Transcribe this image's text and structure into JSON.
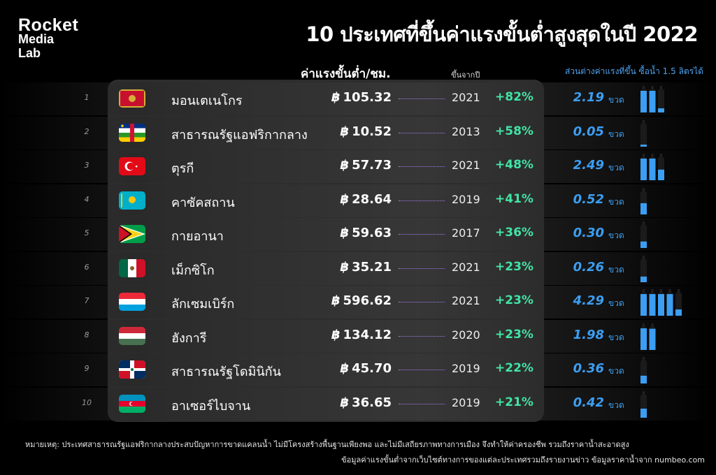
{
  "logo": {
    "line1": "Rocket",
    "line2": "Media",
    "line3": "Lab"
  },
  "title": "10 ประเทศที่ขึ้นค่าแรงขั้นต่ำสูงสุดในปี 2022",
  "headers": {
    "wage": "ค่าแรงขั้นต่ำ/ชม.",
    "year": "ขึ้นจากปี",
    "bottles": "ส่วนต่างค่าแรงที่ขึ้น ซื้อน้ำ 1.5 ลิตรได้"
  },
  "currency_symbol": "฿",
  "bottle_unit": "ขวด",
  "colors": {
    "accent_green": "#41e4a5",
    "accent_blue": "#3c9ef2",
    "dots": "#a17cf0"
  },
  "chart_data": {
    "type": "table",
    "columns": [
      "rank",
      "country",
      "wage_per_hour_baht",
      "since_year",
      "increase_pct",
      "bottles_1_5l"
    ],
    "rows": [
      {
        "rank": "1",
        "flag": "flag-montenegro-icon",
        "country": "มอนเตเนโกร",
        "wage": "105.32",
        "year": "2021",
        "pct": "+82%",
        "bottles": "2.19",
        "bottles_value": 2.19
      },
      {
        "rank": "2",
        "flag": "flag-central-african-republic-icon",
        "country": "สาธารณรัฐแอฟริกากลาง",
        "wage": "10.52",
        "year": "2013",
        "pct": "+58%",
        "bottles": "0.05",
        "bottles_value": 0.05
      },
      {
        "rank": "3",
        "flag": "flag-turkey-icon",
        "country": "ตุรกี",
        "wage": "57.73",
        "year": "2021",
        "pct": "+48%",
        "bottles": "2.49",
        "bottles_value": 2.49
      },
      {
        "rank": "4",
        "flag": "flag-kazakhstan-icon",
        "country": "คาซัคสถาน",
        "wage": "28.64",
        "year": "2019",
        "pct": "+41%",
        "bottles": "0.52",
        "bottles_value": 0.52
      },
      {
        "rank": "5",
        "flag": "flag-guyana-icon",
        "country": "กายอานา",
        "wage": "59.63",
        "year": "2017",
        "pct": "+36%",
        "bottles": "0.30",
        "bottles_value": 0.3
      },
      {
        "rank": "6",
        "flag": "flag-mexico-icon",
        "country": "เม็กซิโก",
        "wage": "35.21",
        "year": "2021",
        "pct": "+23%",
        "bottles": "0.26",
        "bottles_value": 0.26
      },
      {
        "rank": "7",
        "flag": "flag-luxembourg-icon",
        "country": "ลักเซมเบิร์ก",
        "wage": "596.62",
        "year": "2021",
        "pct": "+23%",
        "bottles": "4.29",
        "bottles_value": 4.29
      },
      {
        "rank": "8",
        "flag": "flag-hungary-icon",
        "country": "ฮังการี",
        "wage": "134.12",
        "year": "2020",
        "pct": "+23%",
        "bottles": "1.98",
        "bottles_value": 1.98
      },
      {
        "rank": "9",
        "flag": "flag-dominican-republic-icon",
        "country": "สาธารณรัฐโดมินิกัน",
        "wage": "45.70",
        "year": "2019",
        "pct": "+22%",
        "bottles": "0.36",
        "bottles_value": 0.36
      },
      {
        "rank": "10",
        "flag": "flag-azerbaijan-icon",
        "country": "อาเซอร์ไบจาน",
        "wage": "36.65",
        "year": "2019",
        "pct": "+21%",
        "bottles": "0.42",
        "bottles_value": 0.42
      }
    ]
  },
  "footer": {
    "note": "หมายเหตุ: ประเทศสาธารณรัฐแอฟริกากลางประสบปัญหาการขาดแคลนน้ำ ไม่มีโครงสร้างพื้นฐานเพียงพอ  และไม่มีเสถียรภาพทางการเมือง จึงทำให้ค่าครองชีพ รวมถึงราคาน้ำสะอาดสูง",
    "source": "ข้อมูลค่าแรงขั้นต่ำจากเว็บไซต์ทางการของแต่ละประเทศรวมถึงรายงานข่าว  ข้อมูลราคาน้ำจาก numbeo.com"
  }
}
